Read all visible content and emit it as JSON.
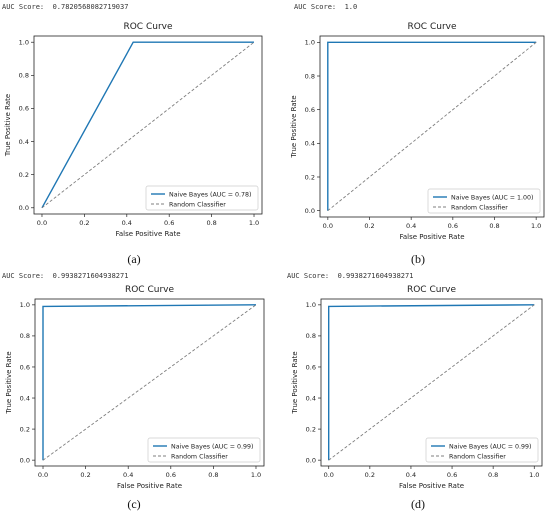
{
  "chart_data": [
    {
      "type": "line",
      "caption": "(a)",
      "auc_text": "AUC Score:  0.7820568082719037",
      "title": "ROC Curve",
      "xlabel": "False Positive Rate",
      "ylabel": "True Positive Rate",
      "xlim": [
        0,
        1
      ],
      "ylim": [
        0,
        1
      ],
      "xticks": [
        "0.0",
        "0.2",
        "0.4",
        "0.6",
        "0.8",
        "1.0"
      ],
      "yticks": [
        "0.0",
        "0.2",
        "0.4",
        "0.6",
        "0.8",
        "1.0"
      ],
      "legend_position": "bottom-right",
      "series": [
        {
          "name": "Naive Bayes (AUC = 0.78)",
          "color": "#1f77b4",
          "style": "solid",
          "x": [
            0,
            0.43,
            1
          ],
          "y": [
            0,
            1,
            1
          ]
        },
        {
          "name": "Random Classifier",
          "color": "#7f7f7f",
          "style": "dashed",
          "x": [
            0,
            1
          ],
          "y": [
            0,
            1
          ]
        }
      ]
    },
    {
      "type": "line",
      "caption": "(b)",
      "auc_text": "AUC Score:  1.0",
      "title": "ROC Curve",
      "xlabel": "False Positive Rate",
      "ylabel": "True Positive Rate",
      "xlim": [
        0,
        1
      ],
      "ylim": [
        0,
        1
      ],
      "xticks": [
        "0.0",
        "0.2",
        "0.4",
        "0.6",
        "0.8",
        "1.0"
      ],
      "yticks": [
        "0.0",
        "0.2",
        "0.4",
        "0.6",
        "0.8",
        "1.0"
      ],
      "legend_position": "bottom-right",
      "series": [
        {
          "name": "Naive Bayes (AUC = 1.00)",
          "color": "#1f77b4",
          "style": "solid",
          "x": [
            0,
            0,
            1
          ],
          "y": [
            0,
            1,
            1
          ]
        },
        {
          "name": "Random Classifier",
          "color": "#7f7f7f",
          "style": "dashed",
          "x": [
            0,
            1
          ],
          "y": [
            0,
            1
          ]
        }
      ]
    },
    {
      "type": "line",
      "caption": "(c)",
      "auc_text": "AUC Score:  0.9938271604938271",
      "title": "ROC Curve",
      "xlabel": "False Positive Rate",
      "ylabel": "True Positive Rate",
      "xlim": [
        0,
        1
      ],
      "ylim": [
        0,
        1
      ],
      "xticks": [
        "0.0",
        "0.2",
        "0.4",
        "0.6",
        "0.8",
        "1.0"
      ],
      "yticks": [
        "0.0",
        "0.2",
        "0.4",
        "0.6",
        "0.8",
        "1.0"
      ],
      "legend_position": "bottom-right",
      "series": [
        {
          "name": "Naive Bayes (AUC = 0.99)",
          "color": "#1f77b4",
          "style": "solid",
          "x": [
            0,
            0,
            1
          ],
          "y": [
            0,
            0.99,
            1
          ]
        },
        {
          "name": "Random Classifier",
          "color": "#7f7f7f",
          "style": "dashed",
          "x": [
            0,
            1
          ],
          "y": [
            0,
            1
          ]
        }
      ]
    },
    {
      "type": "line",
      "caption": "(d)",
      "auc_text": "AUC Score:  0.9938271604938271",
      "title": "ROC Curve",
      "xlabel": "False Positive Rate",
      "ylabel": "True Positive Rate",
      "xlim": [
        0,
        1
      ],
      "ylim": [
        0,
        1
      ],
      "xticks": [
        "0.0",
        "0.2",
        "0.4",
        "0.6",
        "0.8",
        "1.0"
      ],
      "yticks": [
        "0.0",
        "0.2",
        "0.4",
        "0.6",
        "0.8",
        "1.0"
      ],
      "legend_position": "bottom-right",
      "series": [
        {
          "name": "Naive Bayes (AUC = 0.99)",
          "color": "#1f77b4",
          "style": "solid",
          "x": [
            0,
            0,
            1
          ],
          "y": [
            0,
            0.99,
            1
          ]
        },
        {
          "name": "Random Classifier",
          "color": "#7f7f7f",
          "style": "dashed",
          "x": [
            0,
            1
          ],
          "y": [
            0,
            1
          ]
        }
      ]
    }
  ]
}
